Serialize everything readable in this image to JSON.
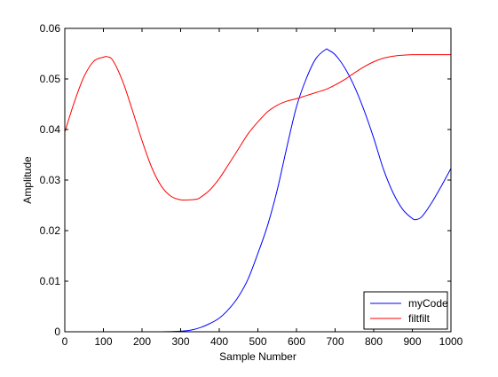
{
  "chart_data": {
    "type": "line",
    "title": "",
    "xlabel": "Sample Number",
    "ylabel": "Amplitude",
    "xlim": [
      0,
      1000
    ],
    "ylim": [
      0,
      0.06
    ],
    "xticks": [
      0,
      100,
      200,
      300,
      400,
      500,
      600,
      700,
      800,
      900,
      1000
    ],
    "xtick_labels": [
      "0",
      "100",
      "200",
      "300",
      "400",
      "500",
      "600",
      "700",
      "800",
      "900",
      "1000"
    ],
    "yticks": [
      0,
      0.01,
      0.02,
      0.03,
      0.04,
      0.05,
      0.06
    ],
    "ytick_labels": [
      "0",
      "0.01",
      "0.02",
      "0.03",
      "0.04",
      "0.05",
      "0.06"
    ],
    "grid": false,
    "legend_position": "bottom-right",
    "series": [
      {
        "name": "myCode",
        "color": "#0000ff",
        "x": [
          0,
          50,
          100,
          150,
          200,
          250,
          300,
          325,
          350,
          375,
          400,
          425,
          450,
          475,
          500,
          525,
          550,
          575,
          600,
          625,
          650,
          675,
          683,
          700,
          725,
          750,
          775,
          800,
          825,
          850,
          875,
          900,
          910,
          925,
          950,
          975,
          1000
        ],
        "y": [
          0,
          0,
          0,
          0,
          0,
          0,
          0.0001,
          0.0003,
          0.0008,
          0.0016,
          0.0027,
          0.0045,
          0.007,
          0.0105,
          0.0155,
          0.021,
          0.028,
          0.0365,
          0.0445,
          0.05,
          0.054,
          0.0558,
          0.0557,
          0.0548,
          0.0522,
          0.0485,
          0.0438,
          0.0383,
          0.0322,
          0.0275,
          0.0242,
          0.0224,
          0.0222,
          0.0228,
          0.0255,
          0.0288,
          0.0323
        ]
      },
      {
        "name": "filtfilt",
        "color": "#ff0000",
        "x": [
          0,
          25,
          50,
          75,
          100,
          110,
          125,
          150,
          175,
          200,
          225,
          250,
          275,
          300,
          325,
          340,
          350,
          375,
          400,
          425,
          450,
          475,
          500,
          525,
          550,
          575,
          600,
          625,
          650,
          675,
          700,
          725,
          750,
          775,
          800,
          825,
          850,
          875,
          900,
          925,
          950,
          975,
          1000
        ],
        "y": [
          0.0395,
          0.0455,
          0.0505,
          0.0535,
          0.0543,
          0.0544,
          0.0536,
          0.0495,
          0.0438,
          0.0378,
          0.0325,
          0.0288,
          0.0268,
          0.0261,
          0.0261,
          0.0262,
          0.0265,
          0.028,
          0.0303,
          0.0332,
          0.0362,
          0.0392,
          0.0415,
          0.0435,
          0.0448,
          0.0456,
          0.0461,
          0.0467,
          0.0473,
          0.0479,
          0.0488,
          0.0499,
          0.0512,
          0.0524,
          0.0534,
          0.0541,
          0.0545,
          0.0547,
          0.0548,
          0.0548,
          0.0548,
          0.0548,
          0.0548
        ]
      }
    ]
  }
}
